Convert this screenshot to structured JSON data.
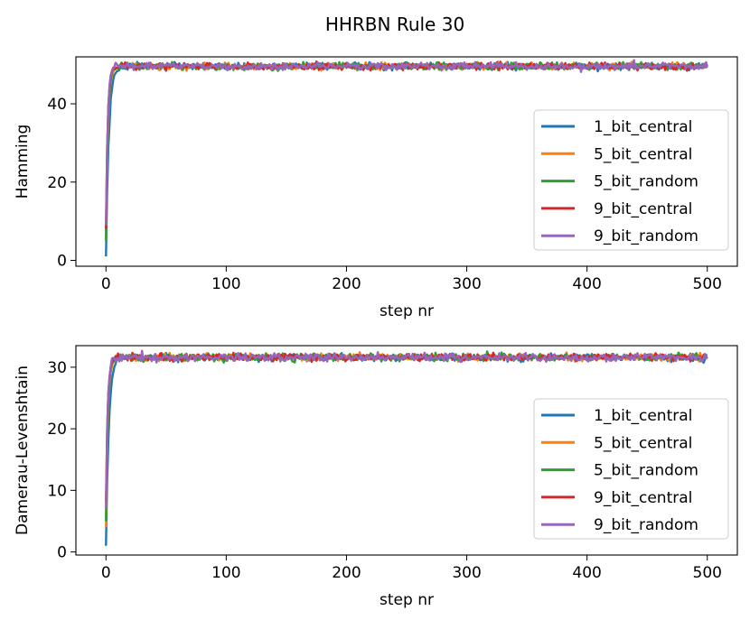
{
  "title": "HHRBN Rule 30",
  "chart_data": [
    {
      "type": "line",
      "xlabel": "step nr",
      "ylabel": "Hamming",
      "xlim": [
        -25,
        525
      ],
      "ylim": [
        -1.5,
        52
      ],
      "xticks": [
        0,
        100,
        200,
        300,
        400,
        500
      ],
      "yticks": [
        0,
        20,
        40
      ],
      "grid": false,
      "legend_position": "right",
      "plateau": 49.6,
      "noise": 0.45,
      "series": [
        {
          "name": "1_bit_central",
          "color": "#1f77b4",
          "start": 1,
          "rate": 0.42
        },
        {
          "name": "5_bit_central",
          "color": "#ff7f0e",
          "start": 5,
          "rate": 0.6
        },
        {
          "name": "5_bit_random",
          "color": "#2ca02c",
          "start": 5,
          "rate": 0.62
        },
        {
          "name": "9_bit_central",
          "color": "#d62728",
          "start": 8,
          "rate": 0.7
        },
        {
          "name": "9_bit_random",
          "color": "#9467bd",
          "start": 9,
          "rate": 0.72
        }
      ]
    },
    {
      "type": "line",
      "xlabel": "step nr",
      "ylabel": "Damerau-Levenshtain",
      "xlim": [
        -25,
        525
      ],
      "ylim": [
        -0.5,
        33.5
      ],
      "xticks": [
        0,
        100,
        200,
        300,
        400,
        500
      ],
      "yticks": [
        0,
        10,
        20,
        30
      ],
      "grid": false,
      "legend_position": "right",
      "plateau": 31.6,
      "noise": 0.3,
      "series": [
        {
          "name": "1_bit_central",
          "color": "#1f77b4",
          "start": 1,
          "rate": 0.42
        },
        {
          "name": "5_bit_central",
          "color": "#ff7f0e",
          "start": 4,
          "rate": 0.6
        },
        {
          "name": "5_bit_random",
          "color": "#2ca02c",
          "start": 5,
          "rate": 0.62
        },
        {
          "name": "9_bit_central",
          "color": "#d62728",
          "start": 8,
          "rate": 0.7
        },
        {
          "name": "9_bit_random",
          "color": "#9467bd",
          "start": 7,
          "rate": 0.72
        }
      ]
    }
  ]
}
